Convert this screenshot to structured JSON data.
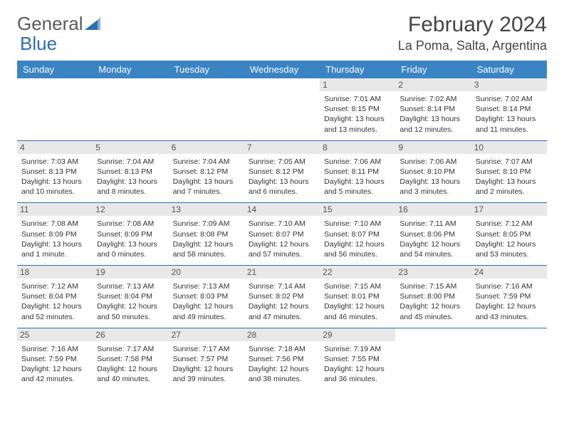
{
  "logo": {
    "text1": "General",
    "text2": "Blue"
  },
  "title": "February 2024",
  "location": "La Poma, Salta, Argentina",
  "colors": {
    "header_bg": "#3b84c4",
    "header_text": "#ffffff",
    "daynum_bg": "#e8e8e8",
    "divider": "#2a6db5",
    "logo_gray": "#5a5a5a",
    "logo_blue": "#2a6db5"
  },
  "day_headers": [
    "Sunday",
    "Monday",
    "Tuesday",
    "Wednesday",
    "Thursday",
    "Friday",
    "Saturday"
  ],
  "weeks": [
    [
      {
        "empty": true
      },
      {
        "empty": true
      },
      {
        "empty": true
      },
      {
        "empty": true
      },
      {
        "n": "1",
        "sr": "Sunrise: 7:01 AM",
        "ss": "Sunset: 8:15 PM",
        "d1": "Daylight: 13 hours",
        "d2": "and 13 minutes."
      },
      {
        "n": "2",
        "sr": "Sunrise: 7:02 AM",
        "ss": "Sunset: 8:14 PM",
        "d1": "Daylight: 13 hours",
        "d2": "and 12 minutes."
      },
      {
        "n": "3",
        "sr": "Sunrise: 7:02 AM",
        "ss": "Sunset: 8:14 PM",
        "d1": "Daylight: 13 hours",
        "d2": "and 11 minutes."
      }
    ],
    [
      {
        "n": "4",
        "sr": "Sunrise: 7:03 AM",
        "ss": "Sunset: 8:13 PM",
        "d1": "Daylight: 13 hours",
        "d2": "and 10 minutes."
      },
      {
        "n": "5",
        "sr": "Sunrise: 7:04 AM",
        "ss": "Sunset: 8:13 PM",
        "d1": "Daylight: 13 hours",
        "d2": "and 8 minutes."
      },
      {
        "n": "6",
        "sr": "Sunrise: 7:04 AM",
        "ss": "Sunset: 8:12 PM",
        "d1": "Daylight: 13 hours",
        "d2": "and 7 minutes."
      },
      {
        "n": "7",
        "sr": "Sunrise: 7:05 AM",
        "ss": "Sunset: 8:12 PM",
        "d1": "Daylight: 13 hours",
        "d2": "and 6 minutes."
      },
      {
        "n": "8",
        "sr": "Sunrise: 7:06 AM",
        "ss": "Sunset: 8:11 PM",
        "d1": "Daylight: 13 hours",
        "d2": "and 5 minutes."
      },
      {
        "n": "9",
        "sr": "Sunrise: 7:06 AM",
        "ss": "Sunset: 8:10 PM",
        "d1": "Daylight: 13 hours",
        "d2": "and 3 minutes."
      },
      {
        "n": "10",
        "sr": "Sunrise: 7:07 AM",
        "ss": "Sunset: 8:10 PM",
        "d1": "Daylight: 13 hours",
        "d2": "and 2 minutes."
      }
    ],
    [
      {
        "n": "11",
        "sr": "Sunrise: 7:08 AM",
        "ss": "Sunset: 8:09 PM",
        "d1": "Daylight: 13 hours",
        "d2": "and 1 minute."
      },
      {
        "n": "12",
        "sr": "Sunrise: 7:08 AM",
        "ss": "Sunset: 8:09 PM",
        "d1": "Daylight: 13 hours",
        "d2": "and 0 minutes."
      },
      {
        "n": "13",
        "sr": "Sunrise: 7:09 AM",
        "ss": "Sunset: 8:08 PM",
        "d1": "Daylight: 12 hours",
        "d2": "and 58 minutes."
      },
      {
        "n": "14",
        "sr": "Sunrise: 7:10 AM",
        "ss": "Sunset: 8:07 PM",
        "d1": "Daylight: 12 hours",
        "d2": "and 57 minutes."
      },
      {
        "n": "15",
        "sr": "Sunrise: 7:10 AM",
        "ss": "Sunset: 8:07 PM",
        "d1": "Daylight: 12 hours",
        "d2": "and 56 minutes."
      },
      {
        "n": "16",
        "sr": "Sunrise: 7:11 AM",
        "ss": "Sunset: 8:06 PM",
        "d1": "Daylight: 12 hours",
        "d2": "and 54 minutes."
      },
      {
        "n": "17",
        "sr": "Sunrise: 7:12 AM",
        "ss": "Sunset: 8:05 PM",
        "d1": "Daylight: 12 hours",
        "d2": "and 53 minutes."
      }
    ],
    [
      {
        "n": "18",
        "sr": "Sunrise: 7:12 AM",
        "ss": "Sunset: 8:04 PM",
        "d1": "Daylight: 12 hours",
        "d2": "and 52 minutes."
      },
      {
        "n": "19",
        "sr": "Sunrise: 7:13 AM",
        "ss": "Sunset: 8:04 PM",
        "d1": "Daylight: 12 hours",
        "d2": "and 50 minutes."
      },
      {
        "n": "20",
        "sr": "Sunrise: 7:13 AM",
        "ss": "Sunset: 8:03 PM",
        "d1": "Daylight: 12 hours",
        "d2": "and 49 minutes."
      },
      {
        "n": "21",
        "sr": "Sunrise: 7:14 AM",
        "ss": "Sunset: 8:02 PM",
        "d1": "Daylight: 12 hours",
        "d2": "and 47 minutes."
      },
      {
        "n": "22",
        "sr": "Sunrise: 7:15 AM",
        "ss": "Sunset: 8:01 PM",
        "d1": "Daylight: 12 hours",
        "d2": "and 46 minutes."
      },
      {
        "n": "23",
        "sr": "Sunrise: 7:15 AM",
        "ss": "Sunset: 8:00 PM",
        "d1": "Daylight: 12 hours",
        "d2": "and 45 minutes."
      },
      {
        "n": "24",
        "sr": "Sunrise: 7:16 AM",
        "ss": "Sunset: 7:59 PM",
        "d1": "Daylight: 12 hours",
        "d2": "and 43 minutes."
      }
    ],
    [
      {
        "n": "25",
        "sr": "Sunrise: 7:16 AM",
        "ss": "Sunset: 7:59 PM",
        "d1": "Daylight: 12 hours",
        "d2": "and 42 minutes."
      },
      {
        "n": "26",
        "sr": "Sunrise: 7:17 AM",
        "ss": "Sunset: 7:58 PM",
        "d1": "Daylight: 12 hours",
        "d2": "and 40 minutes."
      },
      {
        "n": "27",
        "sr": "Sunrise: 7:17 AM",
        "ss": "Sunset: 7:57 PM",
        "d1": "Daylight: 12 hours",
        "d2": "and 39 minutes."
      },
      {
        "n": "28",
        "sr": "Sunrise: 7:18 AM",
        "ss": "Sunset: 7:56 PM",
        "d1": "Daylight: 12 hours",
        "d2": "and 38 minutes."
      },
      {
        "n": "29",
        "sr": "Sunrise: 7:19 AM",
        "ss": "Sunset: 7:55 PM",
        "d1": "Daylight: 12 hours",
        "d2": "and 36 minutes."
      },
      {
        "empty": true
      },
      {
        "empty": true
      }
    ]
  ]
}
